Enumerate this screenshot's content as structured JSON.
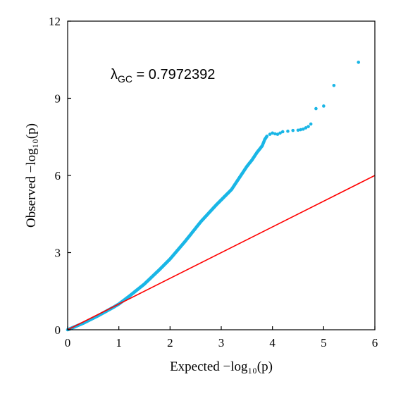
{
  "chart_data": {
    "type": "scatter",
    "title": "",
    "xlabel": "Expected  −log₁₀(p)",
    "ylabel": "Observed  −log₁₀(p)",
    "xlim": [
      0,
      6
    ],
    "ylim": [
      0,
      12
    ],
    "x_ticks": [
      "0",
      "1",
      "2",
      "3",
      "4",
      "5",
      "6"
    ],
    "y_ticks": [
      "0",
      "3",
      "6",
      "9",
      "12"
    ],
    "grid": false,
    "annotation": {
      "text": "λGC = 0.7972392",
      "lambda_symbol": "λ",
      "subscript": "GC",
      "value_text": " = 0.7972392"
    },
    "reference_line": {
      "x": [
        0,
        6
      ],
      "y": [
        0,
        6
      ],
      "color": "#ff0000"
    },
    "point_color": "#1ab6e6",
    "observed_curve": {
      "x": [
        0,
        0.3,
        0.6,
        0.9,
        1.0,
        1.2,
        1.5,
        1.8,
        2.0,
        2.3,
        2.6,
        2.9,
        3.0,
        3.2,
        3.4,
        3.5,
        3.6,
        3.7,
        3.8,
        3.85,
        3.9
      ],
      "y": [
        0,
        0.25,
        0.55,
        0.88,
        1.0,
        1.3,
        1.78,
        2.35,
        2.75,
        3.45,
        4.2,
        4.85,
        5.05,
        5.45,
        6.05,
        6.35,
        6.6,
        6.9,
        7.15,
        7.4,
        7.55
      ]
    },
    "tail_points": {
      "x": [
        3.95,
        4.0,
        4.05,
        4.1,
        4.15,
        4.2,
        4.3,
        4.4,
        4.5,
        4.55,
        4.6,
        4.65,
        4.7,
        4.75,
        4.85,
        5.0,
        5.2,
        5.68
      ],
      "y": [
        7.6,
        7.65,
        7.62,
        7.6,
        7.65,
        7.7,
        7.72,
        7.75,
        7.76,
        7.78,
        7.8,
        7.85,
        7.9,
        8.0,
        8.6,
        8.7,
        9.5,
        10.4
      ]
    }
  }
}
